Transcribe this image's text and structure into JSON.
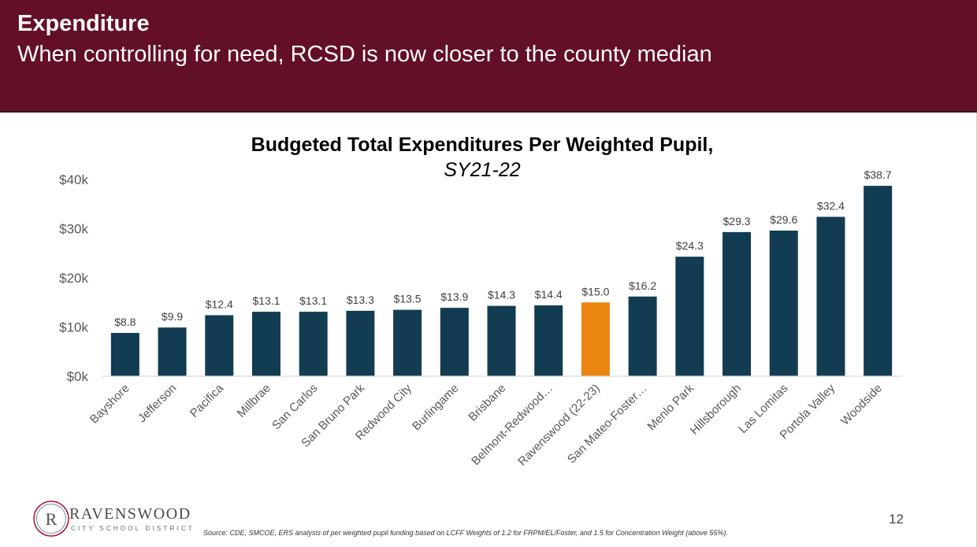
{
  "header": {
    "title": "Expenditure",
    "subtitle": "When controlling for need, RCSD is now closer to the county median"
  },
  "colors": {
    "header_bg": "#630f26",
    "bar": "#123c52",
    "highlight_bar": "#ea8510"
  },
  "chart_data": {
    "type": "bar",
    "title": "Budgeted Total Expenditures Per Weighted Pupil,",
    "subtitle": "SY21-22",
    "xlabel": "",
    "ylabel": "",
    "ylim": [
      0,
      40
    ],
    "yticks": [
      0,
      10,
      20,
      30,
      40
    ],
    "ytick_labels": [
      "$0k",
      "$10k",
      "$20k",
      "$30k",
      "$40k"
    ],
    "grid": false,
    "legend": "none",
    "categories": [
      "Bayshore",
      "Jefferson",
      "Pacifica",
      "Millbrae",
      "San Carlos",
      "San Bruno Park",
      "Redwood City",
      "Burlingame",
      "Brisbane",
      "Belmont-Redwood…",
      "Ravenswood (22-23)",
      "San Mateo-Foster…",
      "Menlo Park",
      "Hillsborough",
      "Las Lomitas",
      "Portola Valley",
      "Woodside"
    ],
    "values": [
      8.8,
      9.9,
      12.4,
      13.1,
      13.1,
      13.3,
      13.5,
      13.9,
      14.3,
      14.4,
      15.0,
      16.2,
      24.3,
      29.3,
      29.6,
      32.4,
      38.7
    ],
    "data_labels": [
      "$8.8",
      "$9.9",
      "$12.4",
      "$13.1",
      "$13.1",
      "$13.3",
      "$13.5",
      "$13.9",
      "$14.3",
      "$14.4",
      "$15.0",
      "$16.2",
      "$24.3",
      "$29.3",
      "$29.6",
      "$32.4",
      "$38.7"
    ],
    "highlight_category": "Ravenswood (22-23)"
  },
  "logo": {
    "letter": "R",
    "name": "RAVENSWOOD",
    "subtitle": "CITY SCHOOL DISTRICT"
  },
  "footer": {
    "page_number": "12",
    "source": "Source: CDE, SMCOE, ERS analysis of per weighted pupil funding based on LCFF Weights of 1.2 for FRPM/EL/Foster, and 1.5 for Concentration Weight (above 55%)."
  }
}
